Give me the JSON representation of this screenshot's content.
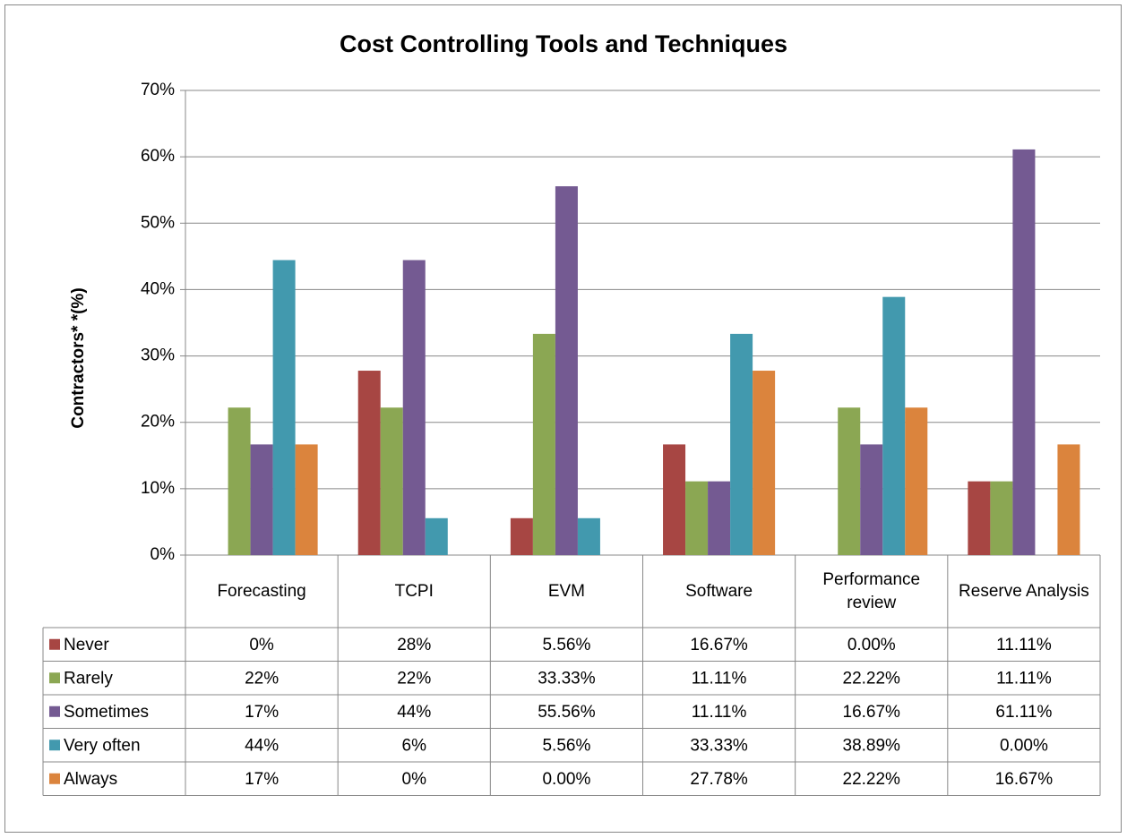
{
  "chart_data": {
    "type": "bar",
    "title": "Cost Controlling Tools and Techniques",
    "y_label": "Contractors* *(%)",
    "categories": [
      "Forecasting",
      "TCPI",
      "EVM",
      "Software",
      "Performance review",
      "Reserve Analysis"
    ],
    "series": [
      {
        "name": "Never",
        "color": "#a74643",
        "values": [
          0,
          27.78,
          5.56,
          16.67,
          0,
          11.11
        ],
        "value_labels": [
          "0%",
          "28%",
          "5.56%",
          "16.67%",
          "0.00%",
          "11.11%"
        ]
      },
      {
        "name": "Rarely",
        "color": "#8ba753",
        "values": [
          22.22,
          22.22,
          33.33,
          11.11,
          22.22,
          11.11
        ],
        "value_labels": [
          "22%",
          "22%",
          "33.33%",
          "11.11%",
          "22.22%",
          "11.11%"
        ]
      },
      {
        "name": "Sometimes",
        "color": "#745a92",
        "values": [
          16.67,
          44.44,
          55.56,
          11.11,
          16.67,
          61.11
        ],
        "value_labels": [
          "17%",
          "44%",
          "55.56%",
          "11.11%",
          "16.67%",
          "61.11%"
        ]
      },
      {
        "name": "Very often",
        "color": "#4299ae",
        "values": [
          44.44,
          5.56,
          5.56,
          33.33,
          38.89,
          0
        ],
        "value_labels": [
          "44%",
          "6%",
          "5.56%",
          "33.33%",
          "38.89%",
          "0.00%"
        ]
      },
      {
        "name": "Always",
        "color": "#db843d",
        "values": [
          16.67,
          0,
          0,
          27.78,
          22.22,
          16.67
        ],
        "value_labels": [
          "17%",
          "0%",
          "0.00%",
          "27.78%",
          "22.22%",
          "16.67%"
        ]
      }
    ],
    "ylim": [
      0,
      70
    ],
    "yticks": [
      {
        "value": 0,
        "label": "0%"
      },
      {
        "value": 10,
        "label": "10%"
      },
      {
        "value": 20,
        "label": "20%"
      },
      {
        "value": 30,
        "label": "30%"
      },
      {
        "value": 40,
        "label": "40%"
      },
      {
        "value": 50,
        "label": "50%"
      },
      {
        "value": 60,
        "label": "60%"
      },
      {
        "value": 70,
        "label": "70%"
      }
    ],
    "grid": true
  }
}
